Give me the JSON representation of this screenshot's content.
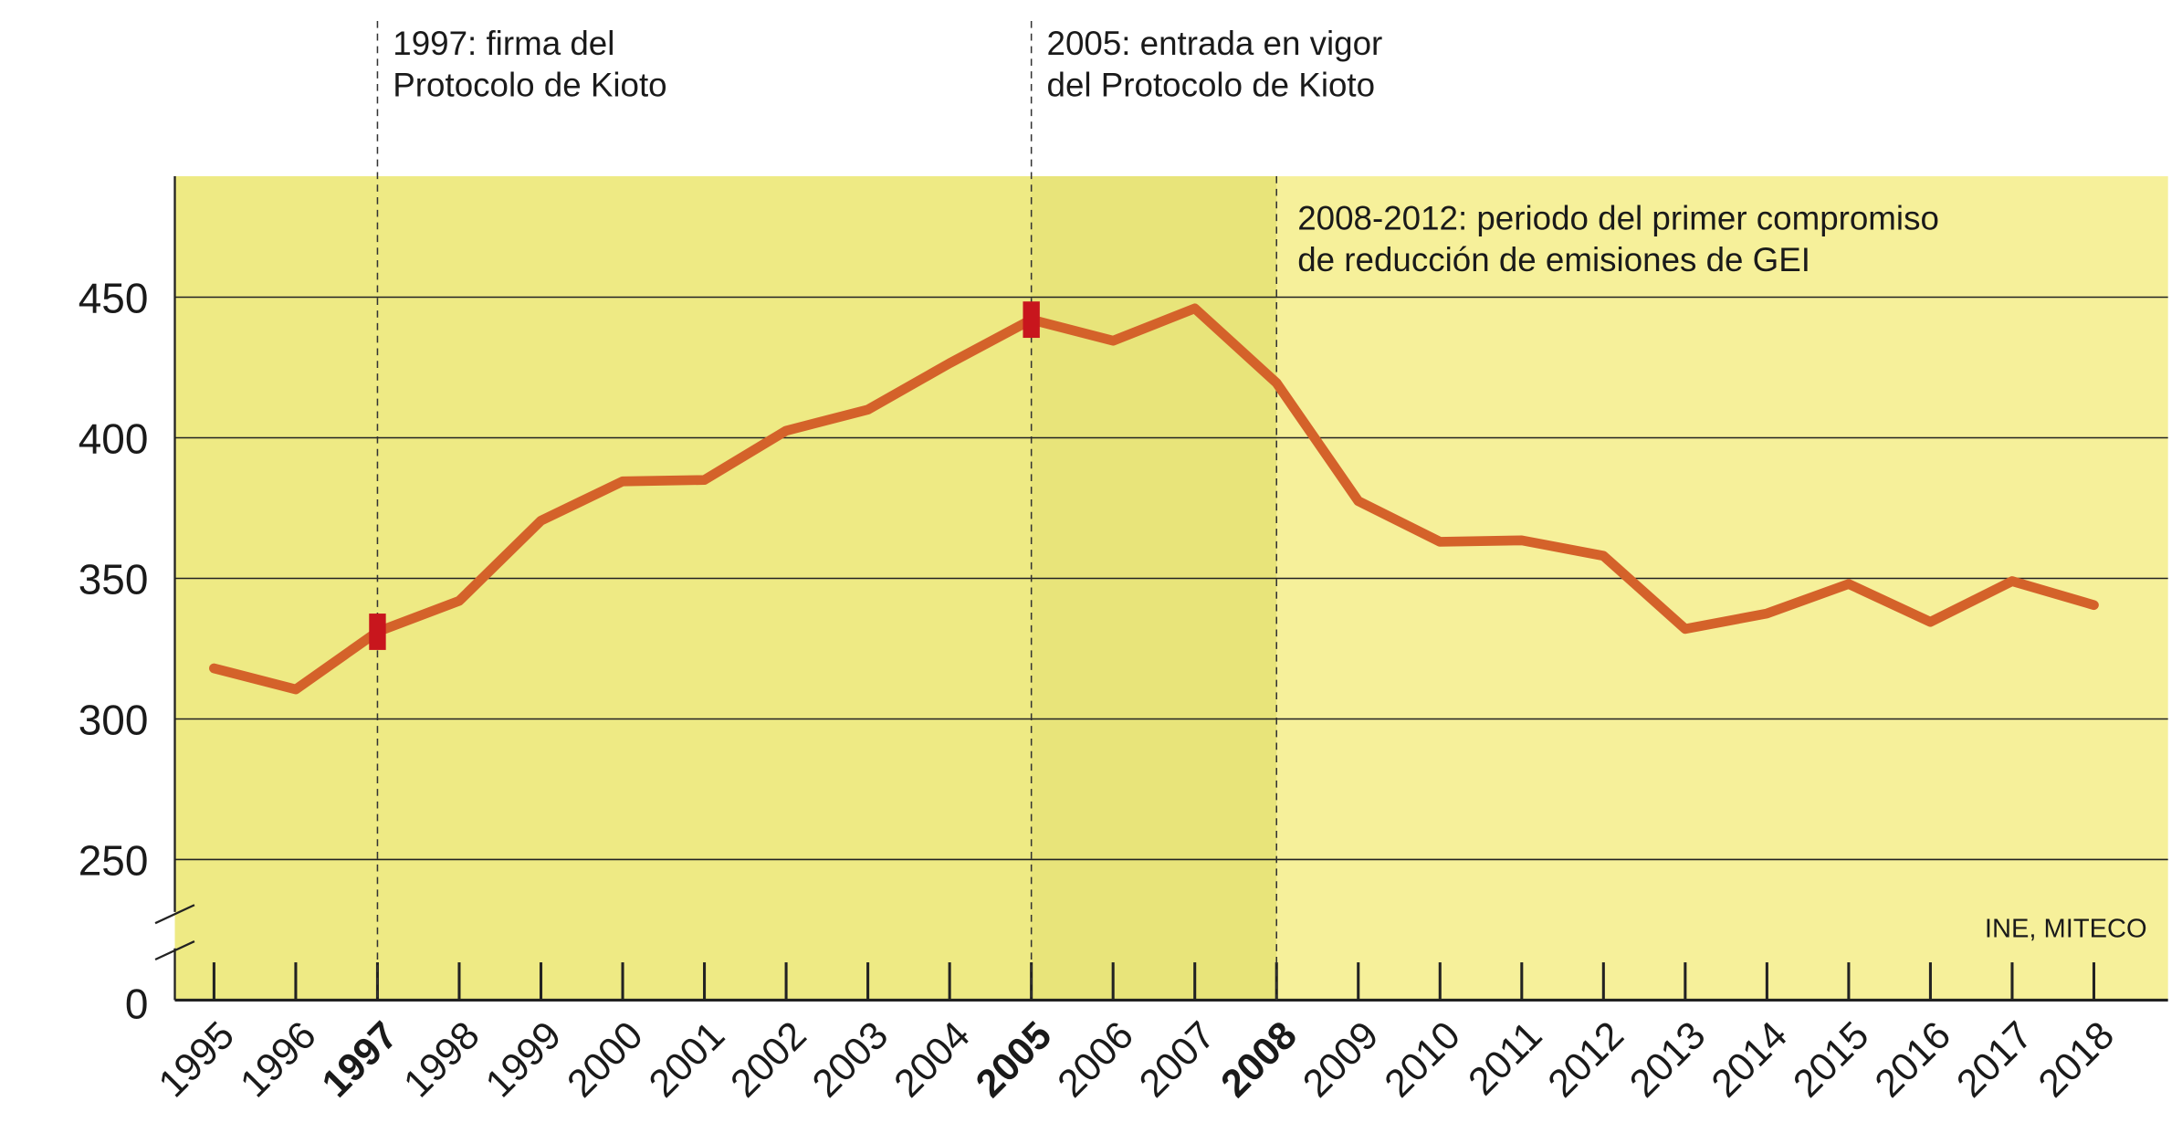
{
  "chart_data": {
    "type": "line",
    "categories": [
      "1995",
      "1996",
      "1997",
      "1998",
      "1999",
      "2000",
      "2001",
      "2002",
      "2003",
      "2004",
      "2005",
      "2006",
      "2007",
      "2008",
      "2009",
      "2010",
      "2011",
      "2012",
      "2013",
      "2014",
      "2015",
      "2016",
      "2017",
      "2018"
    ],
    "series": [
      {
        "color": "#d4622a",
        "values": [
          318,
          310.5,
          331,
          342,
          370.5,
          384.5,
          385,
          402.5,
          410,
          426.5,
          442,
          434.5,
          446,
          419.5,
          377.5,
          363,
          363.5,
          358,
          332,
          337.5,
          348,
          334.5,
          349,
          340.5
        ]
      }
    ],
    "ylim": [
      0,
      493
    ],
    "y_break": [
      0,
      200
    ],
    "yticks": [
      0,
      250,
      300,
      350,
      400,
      450
    ],
    "grid": true,
    "annotations": [
      {
        "category": "1997",
        "lines": [
          "1997: firma del",
          "Protocolo de Kioto"
        ],
        "marker": true
      },
      {
        "category": "2005",
        "lines": [
          "2005: entrada en vigor",
          "del Protocolo de Kioto"
        ],
        "marker": true
      },
      {
        "category": "2008",
        "lines": [
          "2008-2012: periodo del primer compromiso",
          "de reducción de emisiones de GEI"
        ],
        "marker": false
      }
    ],
    "source": "INE, MITECO"
  }
}
